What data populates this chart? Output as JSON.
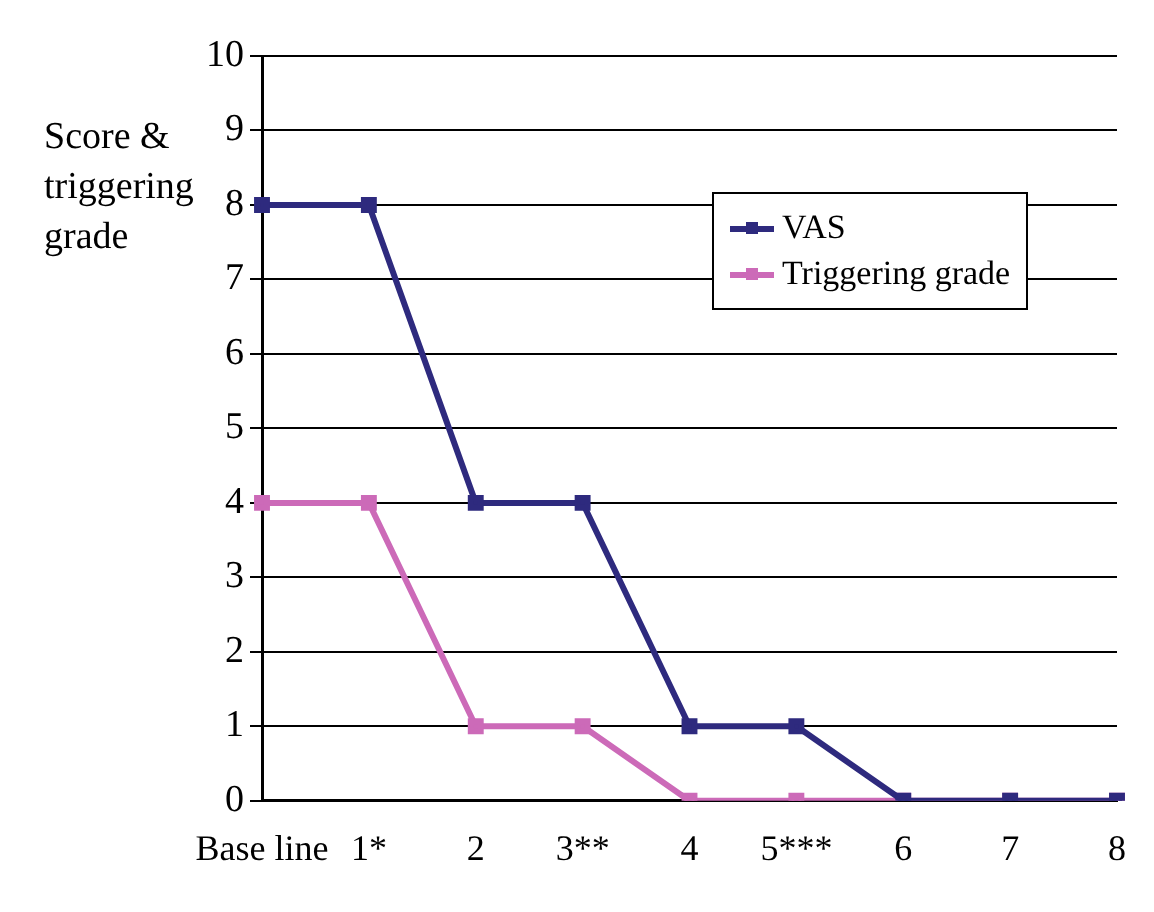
{
  "chart_data": {
    "type": "line",
    "ylabel": "Score & triggering grade",
    "categories": [
      "Base line",
      "1*",
      "2",
      "3**",
      "4",
      "5***",
      "6",
      "7",
      "8"
    ],
    "series": [
      {
        "name": "VAS",
        "color": "#2e2a7e",
        "values": [
          8,
          8,
          4,
          4,
          1,
          1,
          0,
          0,
          0
        ]
      },
      {
        "name": "Triggering grade",
        "color": "#cc6ab8",
        "values": [
          4,
          4,
          1,
          1,
          0,
          0,
          0,
          0,
          0
        ]
      }
    ],
    "ylim": [
      0,
      10
    ],
    "yticks": [
      0,
      1,
      2,
      3,
      4,
      5,
      6,
      7,
      8,
      9,
      10
    ],
    "grid": "y",
    "legend": "top right",
    "marker": "square",
    "line_style": "solid"
  }
}
